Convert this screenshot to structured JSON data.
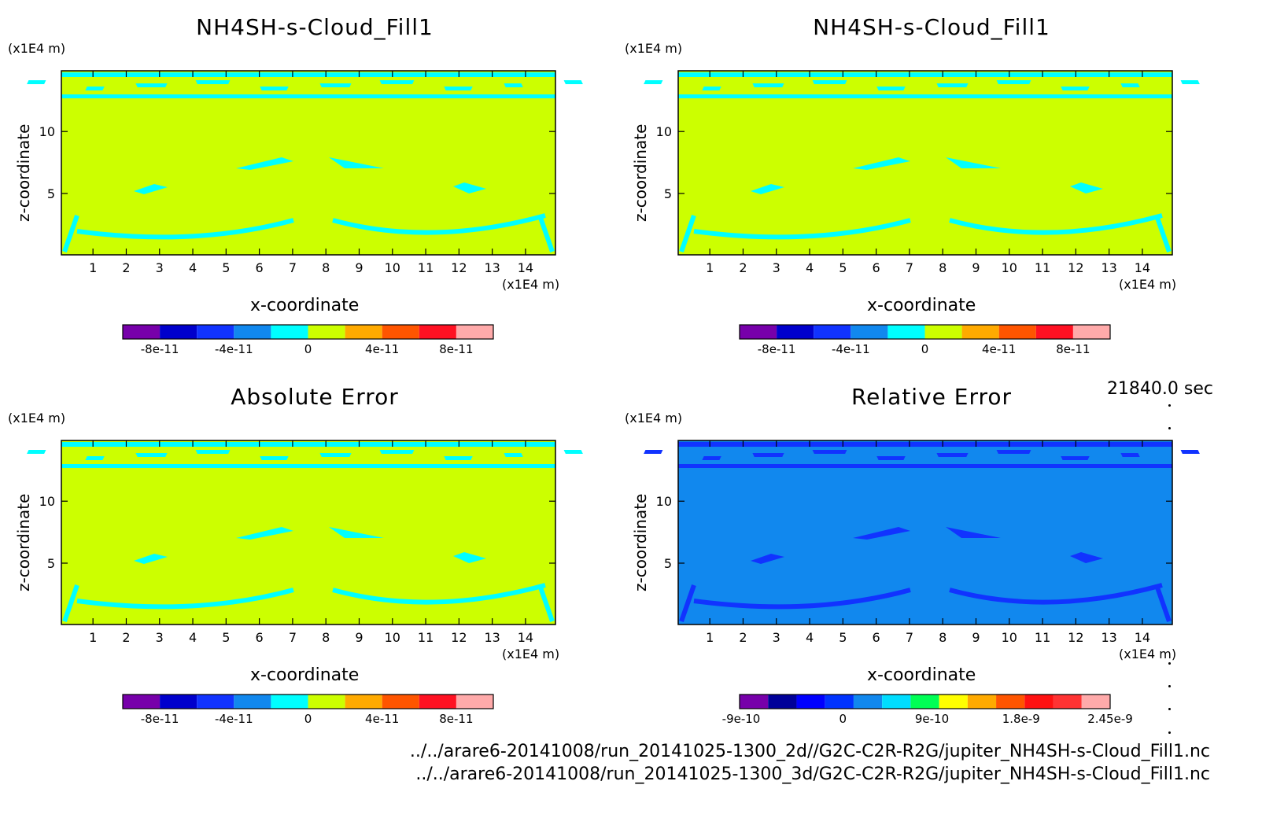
{
  "timestamp": "21840.0 sec",
  "footer": {
    "line1": "../../arare6-20141008/run_20141025-1300_2d//G2C-C2R-R2G/jupiter_NH4SH-s-Cloud_Fill1.nc",
    "line2": "../../arare6-20141008/run_20141025-1300_3d/G2C-C2R-R2G/jupiter_NH4SH-s-Cloud_Fill1.nc"
  },
  "chart_data": [
    {
      "type": "heatmap",
      "title": "NH4SH-s-Cloud_Fill1",
      "xlabel": "x-coordinate",
      "ylabel": "z-coordinate",
      "x_unit": "(x1E4 m)",
      "y_unit": "(x1E4 m)",
      "x_ticks": [
        1,
        2,
        3,
        4,
        5,
        6,
        7,
        8,
        9,
        10,
        11,
        12,
        13,
        14
      ],
      "y_ticks": [
        5,
        10
      ],
      "xlim": [
        0.05,
        14.9
      ],
      "ylim": [
        0.05,
        14.9
      ],
      "colorbar": {
        "colors": [
          "#7700aa",
          "#0000cc",
          "#1133ff",
          "#1188ee",
          "#00ffff",
          "#ccff00",
          "#ffaa00",
          "#ff5500",
          "#ff1122",
          "#ffaaaa"
        ],
        "labels": [
          "-8e-11",
          "-4e-11",
          "0",
          "4e-11",
          "8e-11"
        ]
      },
      "dominant_value": "0"
    },
    {
      "type": "heatmap",
      "title": "NH4SH-s-Cloud_Fill1",
      "xlabel": "x-coordinate",
      "ylabel": "z-coordinate",
      "x_unit": "(x1E4 m)",
      "y_unit": "(x1E4 m)",
      "x_ticks": [
        1,
        2,
        3,
        4,
        5,
        6,
        7,
        8,
        9,
        10,
        11,
        12,
        13,
        14
      ],
      "y_ticks": [
        5,
        10
      ],
      "xlim": [
        0.05,
        14.9
      ],
      "ylim": [
        0.05,
        14.9
      ],
      "colorbar": {
        "colors": [
          "#7700aa",
          "#0000cc",
          "#1133ff",
          "#1188ee",
          "#00ffff",
          "#ccff00",
          "#ffaa00",
          "#ff5500",
          "#ff1122",
          "#ffaaaa"
        ],
        "labels": [
          "-8e-11",
          "-4e-11",
          "0",
          "4e-11",
          "8e-11"
        ]
      },
      "dominant_value": "0"
    },
    {
      "type": "heatmap",
      "title": "Absolute Error",
      "xlabel": "x-coordinate",
      "ylabel": "z-coordinate",
      "x_unit": "(x1E4 m)",
      "y_unit": "(x1E4 m)",
      "x_ticks": [
        1,
        2,
        3,
        4,
        5,
        6,
        7,
        8,
        9,
        10,
        11,
        12,
        13,
        14
      ],
      "y_ticks": [
        5,
        10
      ],
      "xlim": [
        0.05,
        14.9
      ],
      "ylim": [
        0.05,
        14.9
      ],
      "colorbar": {
        "colors": [
          "#7700aa",
          "#0000cc",
          "#1133ff",
          "#1188ee",
          "#00ffff",
          "#ccff00",
          "#ffaa00",
          "#ff5500",
          "#ff1122",
          "#ffaaaa"
        ],
        "labels": [
          "-8e-11",
          "-4e-11",
          "0",
          "4e-11",
          "8e-11"
        ]
      },
      "dominant_value": "0"
    },
    {
      "type": "heatmap",
      "title": "Relative Error",
      "xlabel": "x-coordinate",
      "ylabel": "z-coordinate",
      "x_unit": "(x1E4 m)",
      "y_unit": "(x1E4 m)",
      "x_ticks": [
        1,
        2,
        3,
        4,
        5,
        6,
        7,
        8,
        9,
        10,
        11,
        12,
        13,
        14
      ],
      "y_ticks": [
        5,
        10
      ],
      "xlim": [
        0.05,
        14.9
      ],
      "ylim": [
        0.05,
        14.9
      ],
      "colorbar": {
        "colors": [
          "#7700aa",
          "#000099",
          "#0000ff",
          "#0033ff",
          "#1188ee",
          "#00ddff",
          "#00ff55",
          "#ffff00",
          "#ffaa00",
          "#ff5500",
          "#ff1111",
          "#ff3333",
          "#ffaaaa"
        ],
        "labels": [
          "-9e-10",
          "0",
          "9e-10",
          "1.8e-9",
          "2.45e-9"
        ]
      },
      "dominant_value": "0"
    }
  ]
}
